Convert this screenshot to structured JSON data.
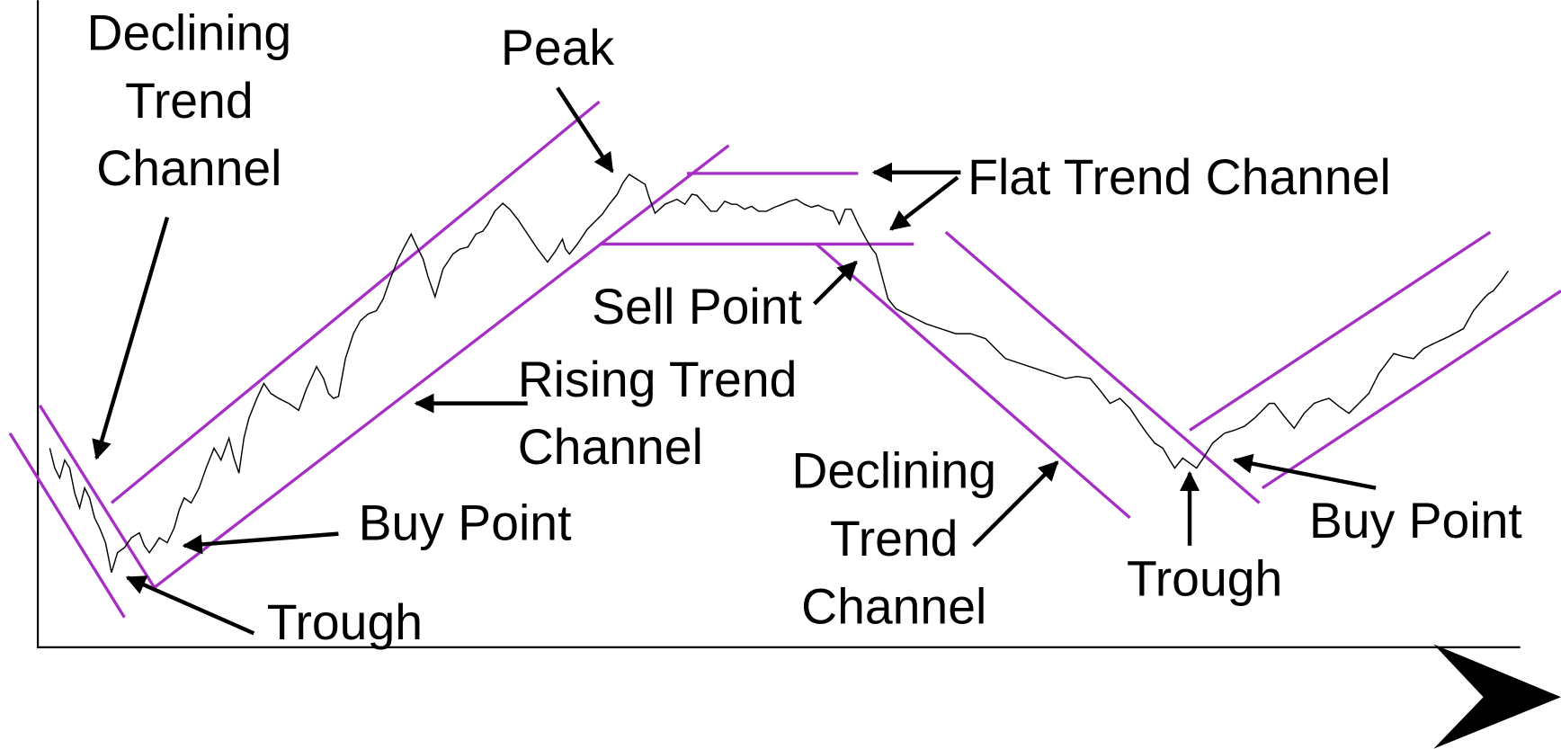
{
  "labels": [
    {
      "lines": [
        "Declining",
        "Trend",
        "Channel"
      ]
    },
    {
      "lines": [
        "Peak"
      ]
    },
    {
      "lines": [
        "Flat Trend Channel"
      ]
    },
    {
      "lines": [
        "Sell Point"
      ]
    },
    {
      "lines": [
        "Rising Trend",
        "Channel"
      ]
    },
    {
      "lines": [
        "Buy Point"
      ]
    },
    {
      "lines": [
        "Trough"
      ]
    },
    {
      "lines": [
        "Declining",
        "Trend",
        "Channel"
      ]
    },
    {
      "lines": [
        "Trough"
      ]
    },
    {
      "lines": [
        "Buy Point"
      ]
    }
  ]
}
